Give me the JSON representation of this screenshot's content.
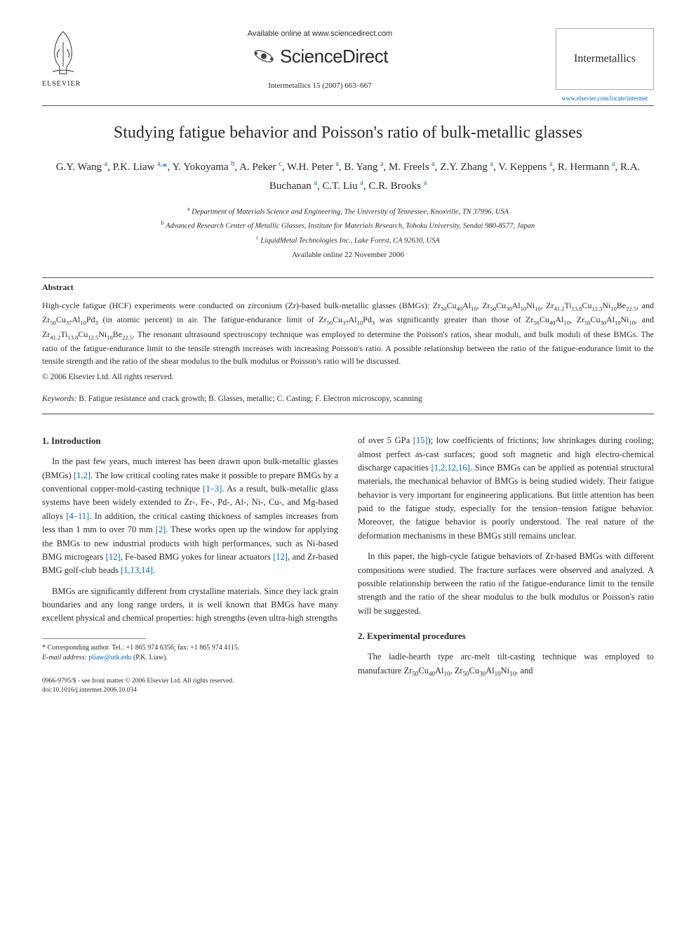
{
  "banner": {
    "availableText": "Available online at www.sciencedirect.com",
    "sdWord": "ScienceDirect",
    "elsevierLabel": "ELSEVIER",
    "journalName": "Intermetallics",
    "journalLink": "www.elsevier.com/locate/intermet",
    "journalRef": "Intermetallics 15 (2007) 663–667"
  },
  "article": {
    "title": "Studying fatigue behavior and Poisson's ratio of bulk-metallic glasses",
    "authorsHtml": "G.Y. Wang <sup>a</sup>, P.K. Liaw <sup>a,</sup><span class='corr'>*</span>, Y. Yokoyama <sup>b</sup>, A. Peker <sup>c</sup>, W.H. Peter <sup>a</sup>, B. Yang <sup>a</sup>, M. Freels <sup>a</sup>, Z.Y. Zhang <sup>a</sup>, V. Keppens <sup>a</sup>, R. Hermann <sup>a</sup>, R.A. Buchanan <sup>a</sup>, C.T. Liu <sup>a</sup>, C.R. Brooks <sup>a</sup>",
    "affiliations": [
      {
        "sup": "a",
        "text": "Department of Materials Science and Engineering, The University of Tennessee, Knoxville, TN 37996, USA"
      },
      {
        "sup": "b",
        "text": "Advanced Research Center of Metallic Glasses, Institute for Materials Research, Tohoku University, Sendai 980-8577, Japan"
      },
      {
        "sup": "c",
        "text": "LiquidMetal Technologies Inc., Lake Forest, CA 92630, USA"
      }
    ],
    "availableDate": "Available online 22 November 2006"
  },
  "abstract": {
    "heading": "Abstract",
    "body": "High-cycle fatigue (HCF) experiments were conducted on zirconium (Zr)-based bulk-metallic glasses (BMGs): Zr<sub>50</sub>Cu<sub>40</sub>Al<sub>10</sub>, Zr<sub>50</sub>Cu<sub>30</sub>Al<sub>10</sub>Ni<sub>10</sub>, Zr<sub>41.2</sub>Ti<sub>13.8</sub>Cu<sub>12.5</sub>Ni<sub>10</sub>Be<sub>22.5</sub>, and Zr<sub>50</sub>Cu<sub>37</sub>Al<sub>10</sub>Pd<sub>3</sub> (in atomic percent) in air. The fatigue-endurance limit of Zr<sub>50</sub>Cu<sub>37</sub>Al<sub>10</sub>Pd<sub>3</sub> was significantly greater than those of Zr<sub>50</sub>Cu<sub>40</sub>Al<sub>10</sub>, Zr<sub>50</sub>Cu<sub>30</sub>Al<sub>10</sub>Ni<sub>10</sub>, and Zr<sub>41.2</sub>Ti<sub>13.8</sub>Cu<sub>12.5</sub>Ni<sub>10</sub>Be<sub>22.5</sub>. The resonant ultrasound spectroscopy technique was employed to determine the Poisson's ratios, shear moduli, and bulk moduli of these BMGs. The ratio of the fatigue-endurance limit to the tensile strength increases with increasing Poisson's ratio. A possible relationship between the ratio of the fatigue-endurance limit to the tensile strength and the ratio of the shear modulus to the bulk modulus or Poisson's ratio will be discussed.",
    "copyright": "© 2006 Elsevier Ltd. All rights reserved.",
    "keywordsLabel": "Keywords:",
    "keywords": "B. Fatigue resistance and crack growth; B. Glasses, metallic; C. Casting; F. Electron microscopy, scanning"
  },
  "sections": {
    "introHead": "1. Introduction",
    "introP1": "In the past few years, much interest has been drawn upon bulk-metallic glasses (BMGs) <span class='ref'>[1,2]</span>. The low critical cooling rates make it possible to prepare BMGs by a conventional copper-mold-casting technique <span class='ref'>[1–3]</span>. As a result, bulk-metallic glass systems have been widely extended to Zr-, Fe-, Pd-, Al-, Ni-, Cu-, and Mg-based alloys <span class='ref'>[4–11]</span>. In addition, the critical casting thickness of samples increases from less than 1 mm to over 70 mm <span class='ref'>[2]</span>. These works open up the window for applying the BMGs to new industrial products with high performances, such as Ni-based BMG microgears <span class='ref'>[12]</span>, Fe-based BMG yokes for linear actuators <span class='ref'>[12]</span>, and Zr-based BMG golf-club heads <span class='ref'>[1,13,14]</span>.",
    "introP2": "BMGs are significantly different from crystalline materials. Since they lack grain boundaries and any long range orders, it is well known that BMGs have many excellent physical and chemical properties: high strengths (even ultra-high strengths",
    "col2P1": "of over 5 GPa <span class='ref'>[15]</span>); low coefficients of frictions; low shrinkages during cooling; almost perfect as-cast surfaces; good soft magnetic and high electro-chemical discharge capacities <span class='ref'>[1,2,12,16]</span>. Since BMGs can be applied as potential structural materials, the mechanical behavior of BMGs is being studied widely. Their fatigue behavior is very important for engineering applications. But little attention has been paid to the fatigue study, especially for the tension–tension fatigue behavior. Moreover, the fatigue behavior is poorly understood. The real nature of the deformation mechanisms in these BMGs still remains unclear.",
    "col2P2": "In this paper, the high-cycle fatigue behaviors of Zr-based BMGs with different compositions were studied. The fracture surfaces were observed and analyzed. A possible relationship between the ratio of the fatigue-endurance limit to the tensile strength and the ratio of the shear modulus to the bulk modulus or Poisson's ratio will be suggested.",
    "expHead": "2. Experimental procedures",
    "expP1": "The ladle-hearth type arc-melt tilt-casting technique was employed to manufacture Zr<sub>50</sub>Cu<sub>40</sub>Al<sub>10</sub>, Zr<sub>50</sub>Cu<sub>30</sub>Al<sub>10</sub>Ni<sub>10</sub>, and"
  },
  "footnote": {
    "corr": "* Corresponding author. Tel.: +1 865 974 6356; fax: +1 865 974 4115.",
    "emailLabel": "E-mail address:",
    "email": "pliaw@utk.edu",
    "emailName": "(P.K. Liaw)."
  },
  "footer": {
    "line1": "0966-9795/$ - see front matter © 2006 Elsevier Ltd. All rights reserved.",
    "line2": "doi:10.1016/j.intermet.2006.10.034"
  },
  "colors": {
    "link": "#0066cc",
    "text": "#2a2a2a",
    "rule": "#555555"
  }
}
